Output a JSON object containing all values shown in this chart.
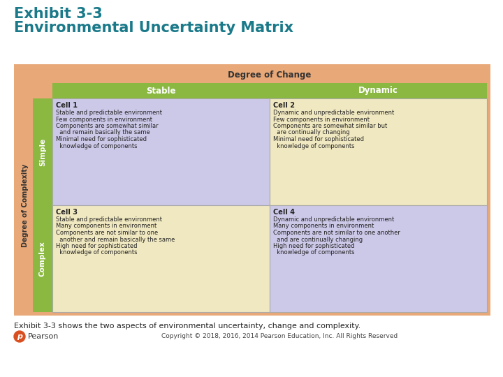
{
  "title_line1": "Exhibit 3-3",
  "title_line2": "Environmental Uncertainty Matrix",
  "title_color": "#1a7a8a",
  "background_color": "#ffffff",
  "header_doc": "Degree of Change",
  "header_doc_bg": "#e8a878",
  "col_headers": [
    "Stable",
    "Dynamic"
  ],
  "col_header_bg": "#8ab840",
  "row_labels": [
    "Simple",
    "Complex"
  ],
  "row_label_bg": "#8ab840",
  "complexity_label": "Degree of Complexity",
  "cell1_bg": "#ccc8e8",
  "cell2_bg": "#f0e8c0",
  "cell3_bg": "#f0e8c0",
  "cell4_bg": "#ccc8e8",
  "cell_text_color": "#222222",
  "cell1_title": "Cell 1",
  "cell1_lines": [
    "Stable and predictable environment",
    "Few components in environment",
    "Components are somewhat similar",
    "  and remain basically the same",
    "Minimal need for sophisticated",
    "  knowledge of components"
  ],
  "cell2_title": "Cell 2",
  "cell2_lines": [
    "Dynamic and unpredictable environment",
    "Few components in environment",
    "Components are somewhat similar but",
    "  are continually changing",
    "Minimal need for sophisticated",
    "  knowledge of components"
  ],
  "cell3_title": "Cell 3",
  "cell3_lines": [
    "Stable and predictable environment",
    "Many components in environment",
    "Components are not similar to one",
    "  another and remain basically the same",
    "High need for sophisticated",
    "  knowledge of components"
  ],
  "cell4_title": "Cell 4",
  "cell4_lines": [
    "Dynamic and unpredictable environment",
    "Many components in environment",
    "Components are not similar to one another",
    "  and are continually changing",
    "High need for sophisticated",
    "  knowledge of components"
  ],
  "footer_text": "Exhibit 3-3 shows the two aspects of environmental uncertainty, change and complexity.",
  "copyright_text": "Copyright © 2018, 2016, 2014 Pearson Education, Inc. All Rights Reserved",
  "pearson_text": "Pearson",
  "outer_bg": "#e8a878",
  "outer_border": "#e8a878"
}
